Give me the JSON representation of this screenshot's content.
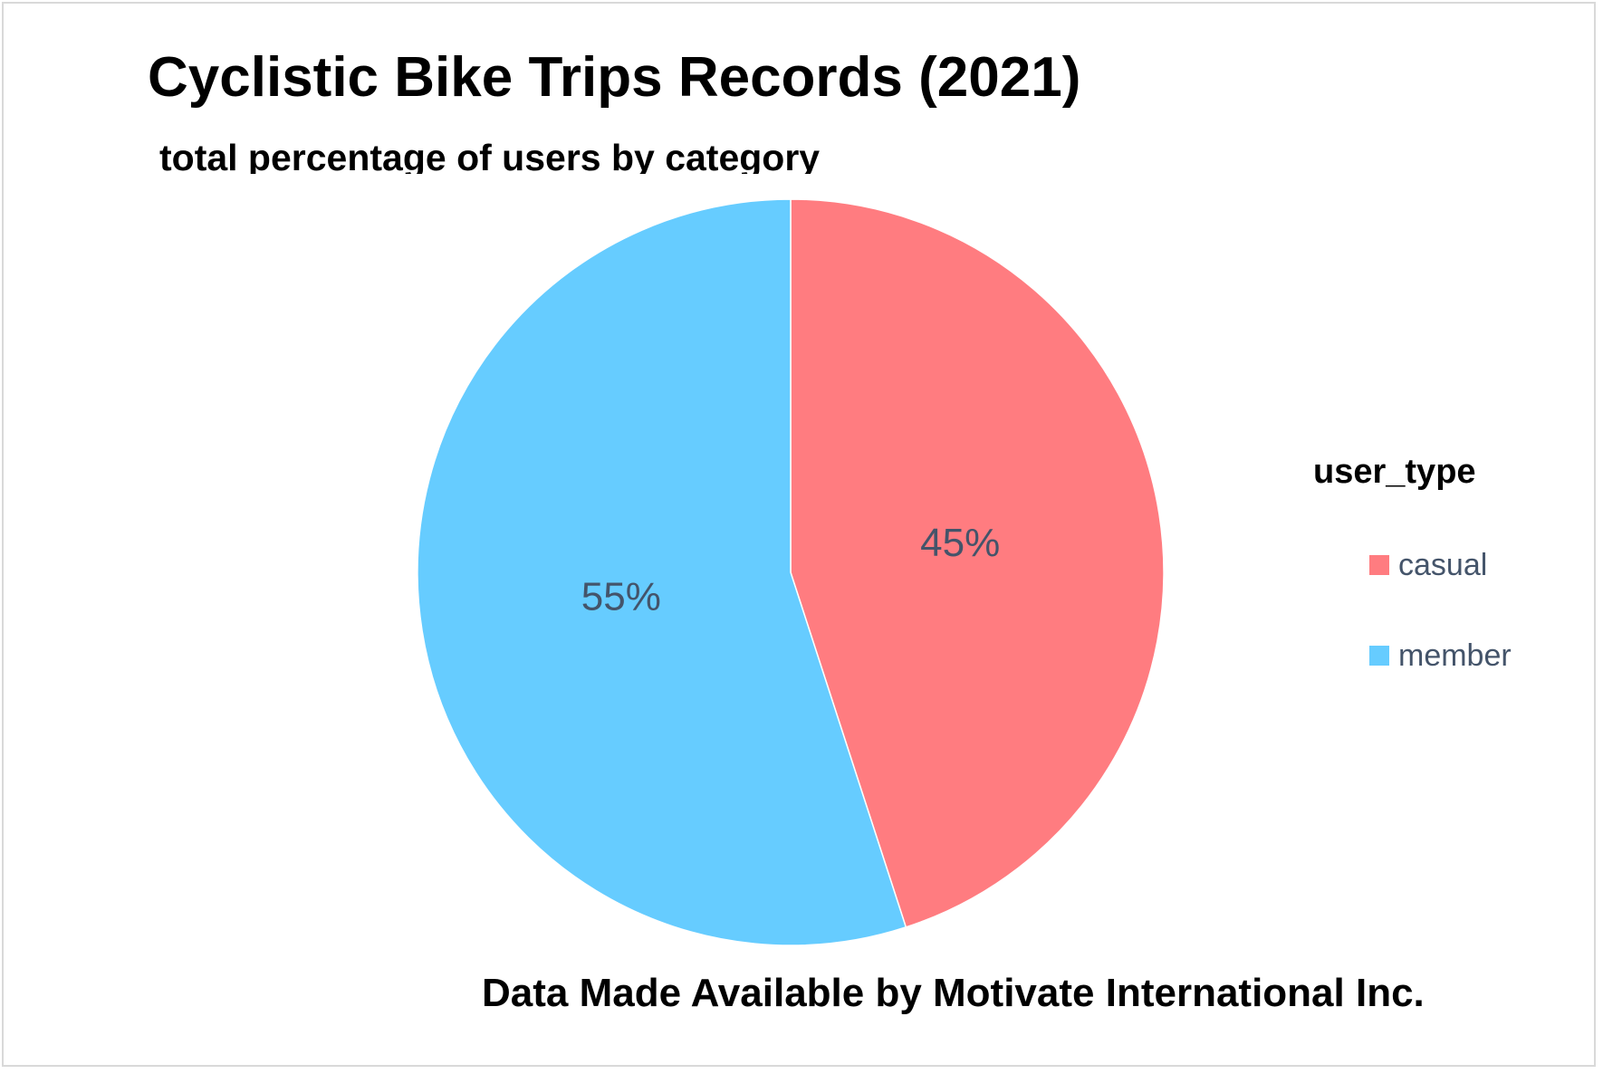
{
  "chart_data": {
    "type": "pie",
    "title": "Cyclistic Bike Trips Records (2021)",
    "subtitle": "total percentage of users by category",
    "legend_title": "user_type",
    "legend_position": "right",
    "categories": [
      "casual",
      "member"
    ],
    "values": [
      45,
      55
    ],
    "data_labels": [
      "45%",
      "55%"
    ],
    "colors": [
      "#ff7c80",
      "#66ccff"
    ],
    "annotation": "Data Made Available by Motivate International Inc."
  }
}
